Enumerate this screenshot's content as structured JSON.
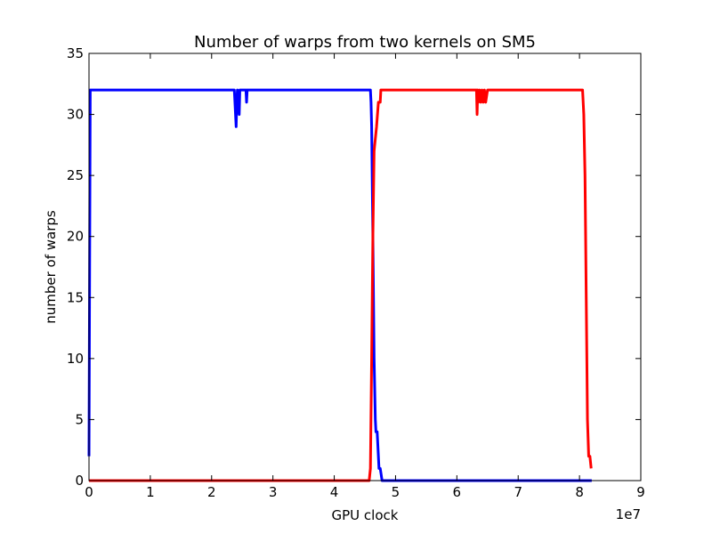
{
  "chart_data": {
    "type": "line",
    "title": "Number of warps from two kernels on SM5",
    "xlabel": "GPU clock",
    "ylabel": "number of warps",
    "x_exponent_label": "1e7",
    "xlim": [
      0,
      90000000
    ],
    "ylim": [
      0,
      35
    ],
    "x_ticks": [
      0,
      10000000,
      20000000,
      30000000,
      40000000,
      50000000,
      60000000,
      70000000,
      80000000,
      90000000
    ],
    "x_tick_labels": [
      "0",
      "1",
      "2",
      "3",
      "4",
      "5",
      "6",
      "7",
      "8",
      "9"
    ],
    "y_ticks": [
      0,
      5,
      10,
      15,
      20,
      25,
      30,
      35
    ],
    "y_tick_labels": [
      "0",
      "5",
      "10",
      "15",
      "20",
      "25",
      "30",
      "35"
    ],
    "grid": false,
    "series": [
      {
        "color": "#0000ff",
        "x": [
          0,
          200000,
          2000000,
          23700000,
          23800000,
          23900000,
          24000000,
          24100000,
          24200000,
          24300000,
          24500000,
          24600000,
          24800000,
          25600000,
          25700000,
          25800000,
          26000000,
          45900000,
          46000000,
          46100000,
          46300000,
          46500000,
          46700000,
          46800000,
          47000000,
          47100000,
          47300000,
          47500000,
          47800000,
          48000000,
          82000000
        ],
        "y": [
          2,
          32,
          32,
          32,
          31,
          30,
          29,
          31,
          32,
          31,
          30,
          32,
          32,
          32,
          31,
          32,
          32,
          32,
          31,
          29,
          20,
          10,
          5,
          4,
          4,
          3,
          1,
          1,
          0,
          0,
          0
        ]
      },
      {
        "color": "#ff0000",
        "x": [
          0,
          45700000,
          45900000,
          46100000,
          46300000,
          46500000,
          46700000,
          46900000,
          47200000,
          47500000,
          47600000,
          47900000,
          63200000,
          63300000,
          63400000,
          63500000,
          63700000,
          63900000,
          64100000,
          64300000,
          64500000,
          64700000,
          65000000,
          80500000,
          80700000,
          80900000,
          81100000,
          81300000,
          81500000,
          81700000,
          81900000
        ],
        "y": [
          0,
          0,
          1,
          10,
          20,
          27,
          28,
          29,
          31,
          31,
          32,
          32,
          32,
          30,
          32,
          31,
          32,
          31,
          32,
          31,
          32,
          31,
          32,
          32,
          30,
          25,
          15,
          5,
          2,
          2,
          1
        ]
      }
    ]
  }
}
